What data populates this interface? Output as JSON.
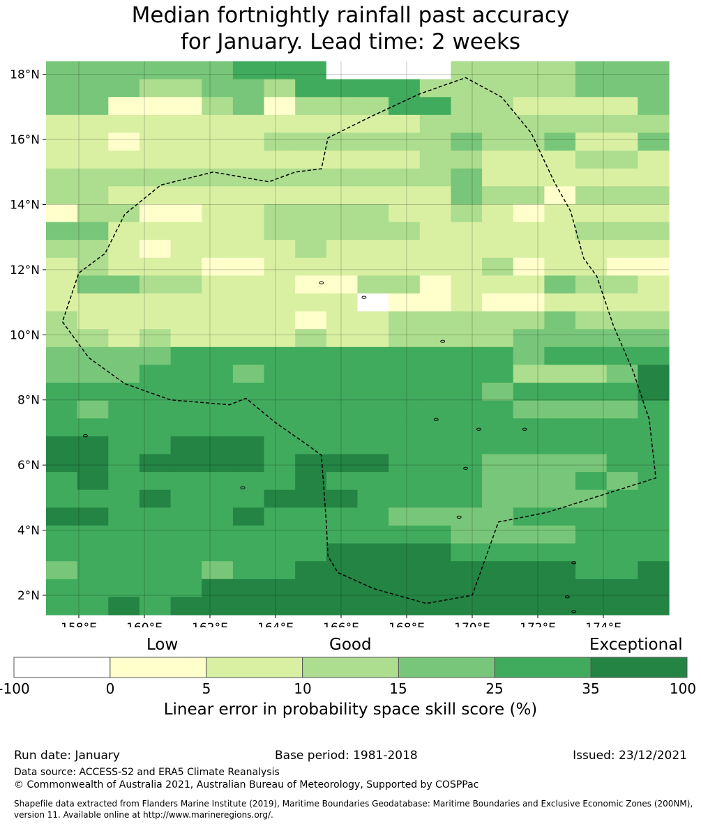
{
  "title": {
    "line1": "Median fortnightly rainfall past accuracy",
    "line2": "for January. Lead time: 2 weeks"
  },
  "map": {
    "lat_range": [
      1.4,
      18.4
    ],
    "lon_range": [
      157.0,
      176.0
    ],
    "x_ticks": [
      {
        "value": 158,
        "label": "158°E"
      },
      {
        "value": 160,
        "label": "160°E"
      },
      {
        "value": 162,
        "label": "162°E"
      },
      {
        "value": 164,
        "label": "164°E"
      },
      {
        "value": 166,
        "label": "166°E"
      },
      {
        "value": 168,
        "label": "168°E"
      },
      {
        "value": 170,
        "label": "170°E"
      },
      {
        "value": 172,
        "label": "172°E"
      },
      {
        "value": 174,
        "label": "174°E"
      }
    ],
    "y_ticks": [
      {
        "value": 18,
        "label": "18°N"
      },
      {
        "value": 16,
        "label": "16°N"
      },
      {
        "value": 14,
        "label": "14°N"
      },
      {
        "value": 12,
        "label": "12°N"
      },
      {
        "value": 10,
        "label": "10°N"
      },
      {
        "value": 8,
        "label": "8°N"
      },
      {
        "value": 6,
        "label": "6°N"
      },
      {
        "value": 4,
        "label": "4°N"
      },
      {
        "value": 2,
        "label": "2°N"
      }
    ],
    "grid_cell_size_deg": 0.833,
    "grid_category_rows_north_to_south": [
      "44444455500003333444",
      "44433443555533333444",
      "44111341333553322224",
      "22222222222233333333",
      "22122223333334334224",
      "22222222222233222332",
      "33333333333334222222",
      "33222222222224331333",
      "13311223333223212222",
      "44222223333322222333",
      "33212222322222222222",
      "23222112222222312211",
      "24433222113312224332",
      "22222222220112112222",
      "32222222122333334333",
      "33232222322333344444",
      "44445555555555545555",
      "44455545555555533346",
      "55555555555555455556",
      "54555555555555544445",
      "55555555555555555555",
      "66556665555555555555",
      "66566665666555444455",
      "56555555655555444545",
      "55565556665555444455",
      "66555565555444455555",
      "55555555555554444555",
      "55555555566665555555",
      "45555455666666666556",
      "55555666666666666666",
      "55656666666666666666"
    ],
    "eez_boundary_lonlat": [
      [
        157.5,
        10.4
      ],
      [
        158.3,
        9.3
      ],
      [
        159.4,
        8.5
      ],
      [
        160.8,
        8.0
      ],
      [
        162.6,
        7.85
      ],
      [
        163.1,
        8.05
      ],
      [
        164.0,
        7.3
      ],
      [
        165.0,
        6.6
      ],
      [
        165.4,
        6.3
      ],
      [
        165.55,
        4.2
      ],
      [
        165.6,
        3.2
      ],
      [
        165.9,
        2.7
      ],
      [
        167.0,
        2.2
      ],
      [
        168.6,
        1.75
      ],
      [
        170.0,
        2.0
      ],
      [
        170.8,
        4.25
      ],
      [
        172.3,
        4.55
      ],
      [
        175.6,
        5.6
      ],
      [
        175.4,
        7.4
      ],
      [
        174.9,
        8.9
      ],
      [
        174.3,
        10.3
      ],
      [
        173.8,
        11.8
      ],
      [
        173.4,
        12.35
      ],
      [
        173.0,
        13.8
      ],
      [
        172.5,
        14.7
      ],
      [
        171.8,
        16.2
      ],
      [
        170.9,
        17.3
      ],
      [
        169.8,
        17.9
      ],
      [
        168.4,
        17.4
      ],
      [
        166.9,
        16.7
      ],
      [
        165.6,
        16.05
      ],
      [
        165.4,
        15.1
      ],
      [
        164.6,
        15.0
      ],
      [
        163.8,
        14.7
      ],
      [
        162.1,
        15.0
      ],
      [
        160.5,
        14.6
      ],
      [
        159.4,
        13.7
      ],
      [
        158.8,
        12.5
      ],
      [
        158.0,
        11.9
      ],
      [
        157.5,
        10.4
      ]
    ],
    "islands_lonlat": [
      [
        158.2,
        6.9
      ],
      [
        163.0,
        5.3
      ],
      [
        170.2,
        7.1
      ],
      [
        171.6,
        7.1
      ],
      [
        168.9,
        7.4
      ],
      [
        169.8,
        5.9
      ],
      [
        169.6,
        4.4
      ],
      [
        173.1,
        3.0
      ],
      [
        172.9,
        1.95
      ],
      [
        169.1,
        9.8
      ],
      [
        166.7,
        11.15
      ],
      [
        165.4,
        11.6
      ],
      [
        173.1,
        1.5
      ]
    ]
  },
  "colorbar": {
    "categories": [
      "Low",
      "Good",
      "Exceptional"
    ],
    "ticks": [
      "-100",
      "0",
      "5",
      "10",
      "15",
      "25",
      "35",
      "100"
    ],
    "colors": [
      "#ffffff",
      "#ffffcc",
      "#d9f0a3",
      "#addd8e",
      "#78c679",
      "#41ab5d",
      "#238443"
    ],
    "label": "Linear error in probability space skill score (%)"
  },
  "footer": {
    "run_date": "Run date: January",
    "base_period": "Base period: 1981-2018",
    "issued": "Issued: 23/12/2021",
    "data_source": "Data source: ACCESS-S2 and ERA5 Climate Reanalysis",
    "copyright": "© Commonwealth of Australia 2021, Australian Bureau of Meteorology, Supported by COSPPac",
    "shapefile_line1": "Shapefile data extracted from Flanders Marine Institute (2019), Maritime Boundaries Geodatabase: Maritime Boundaries and Exclusive Economic Zones (200NM),",
    "shapefile_line2": "version 11. Available online at http://www.marineregions.org/."
  }
}
